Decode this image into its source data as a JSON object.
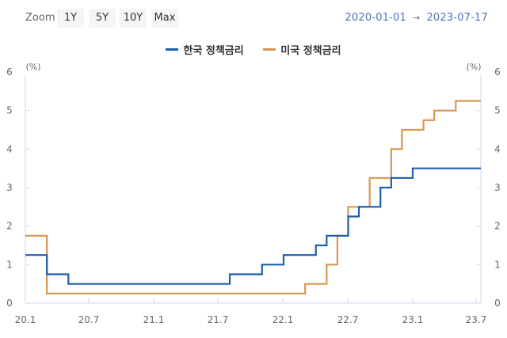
{
  "toolbar": {
    "zoom_label": "Zoom",
    "buttons": [
      "1Y",
      "5Y",
      "10Y",
      "Max"
    ],
    "range_from": "2020-01-01",
    "range_arrow": "→",
    "range_to": "2023-07-17"
  },
  "legend": [
    {
      "label": "한국 정책금리",
      "color": "#1f5fac"
    },
    {
      "label": "미국 정책금리",
      "color": "#d99552"
    }
  ],
  "chart_data": {
    "type": "line",
    "step": true,
    "title": "",
    "xlabel": "",
    "ylabel_left": "(%)",
    "ylabel_right": "(%)",
    "ylim": [
      0,
      6
    ],
    "y_ticks": [
      0,
      1,
      2,
      3,
      4,
      5,
      6
    ],
    "x_ticks": [
      "20.1",
      "20.7",
      "21.1",
      "21.7",
      "22.1",
      "22.7",
      "23.1",
      "23.7"
    ],
    "x_range": [
      "2020-01-01",
      "2023-07-17"
    ],
    "grid": false,
    "legend_position": "top",
    "series": [
      {
        "name": "한국 정책금리",
        "color": "#1f5fac",
        "points": [
          {
            "date": "2020-01",
            "value": 1.25
          },
          {
            "date": "2020-03",
            "value": 0.75
          },
          {
            "date": "2020-05",
            "value": 0.5
          },
          {
            "date": "2021-08",
            "value": 0.75
          },
          {
            "date": "2021-11",
            "value": 1.0
          },
          {
            "date": "2022-01",
            "value": 1.25
          },
          {
            "date": "2022-04",
            "value": 1.5
          },
          {
            "date": "2022-05",
            "value": 1.75
          },
          {
            "date": "2022-07",
            "value": 2.25
          },
          {
            "date": "2022-08",
            "value": 2.5
          },
          {
            "date": "2022-10",
            "value": 3.0
          },
          {
            "date": "2022-11",
            "value": 3.25
          },
          {
            "date": "2023-01",
            "value": 3.5
          },
          {
            "date": "2023-07",
            "value": 3.5
          }
        ]
      },
      {
        "name": "미국 정책금리",
        "color": "#d99552",
        "points": [
          {
            "date": "2020-01",
            "value": 1.75
          },
          {
            "date": "2020-03",
            "value": 0.25
          },
          {
            "date": "2022-03",
            "value": 0.5
          },
          {
            "date": "2022-05",
            "value": 1.0
          },
          {
            "date": "2022-06",
            "value": 1.75
          },
          {
            "date": "2022-07",
            "value": 2.5
          },
          {
            "date": "2022-09",
            "value": 3.25
          },
          {
            "date": "2022-11",
            "value": 4.0
          },
          {
            "date": "2022-12",
            "value": 4.5
          },
          {
            "date": "2023-02",
            "value": 4.75
          },
          {
            "date": "2023-03",
            "value": 5.0
          },
          {
            "date": "2023-05",
            "value": 5.25
          },
          {
            "date": "2023-07",
            "value": 5.25
          }
        ]
      }
    ]
  }
}
